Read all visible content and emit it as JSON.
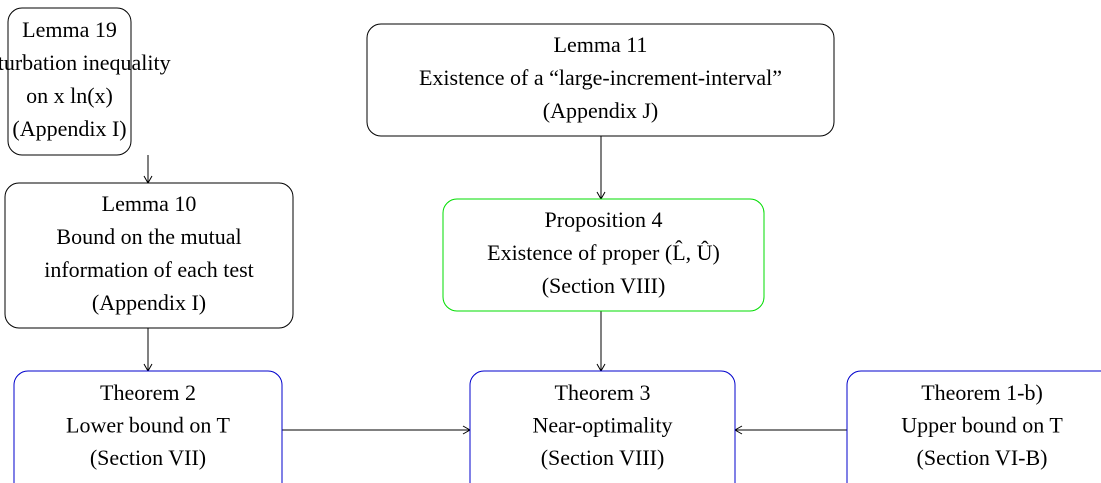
{
  "nodes": [
    {
      "lines": [
        "Lemma 19",
        "Perturbation inequality",
        "on x ln(x)",
        "(Appendix I)"
      ],
      "color": "#000000"
    },
    {
      "lines": [
        "Lemma 10",
        "Bound on the mutual",
        "information of each test",
        "(Appendix I)"
      ],
      "color": "#000000"
    },
    {
      "lines": [
        "Lemma 11",
        "Existence of a “large-increment-interval”",
        "(Appendix J)"
      ],
      "color": "#000000"
    },
    {
      "lines": [
        "Proposition 4",
        "Existence of proper (L̂, Û)",
        "(Section VIII)"
      ],
      "color": "#00dd00"
    },
    {
      "lines": [
        "Theorem 2",
        "Lower bound on T",
        "(Section VII)"
      ],
      "color": "#0000cc"
    },
    {
      "lines": [
        "Theorem 3",
        "Near-optimality",
        "(Section VIII)"
      ],
      "color": "#0000cc"
    },
    {
      "lines": [
        "Theorem 1-b)",
        "Upper bound on T",
        "(Section VI-B)"
      ],
      "color": "#0000cc"
    }
  ]
}
